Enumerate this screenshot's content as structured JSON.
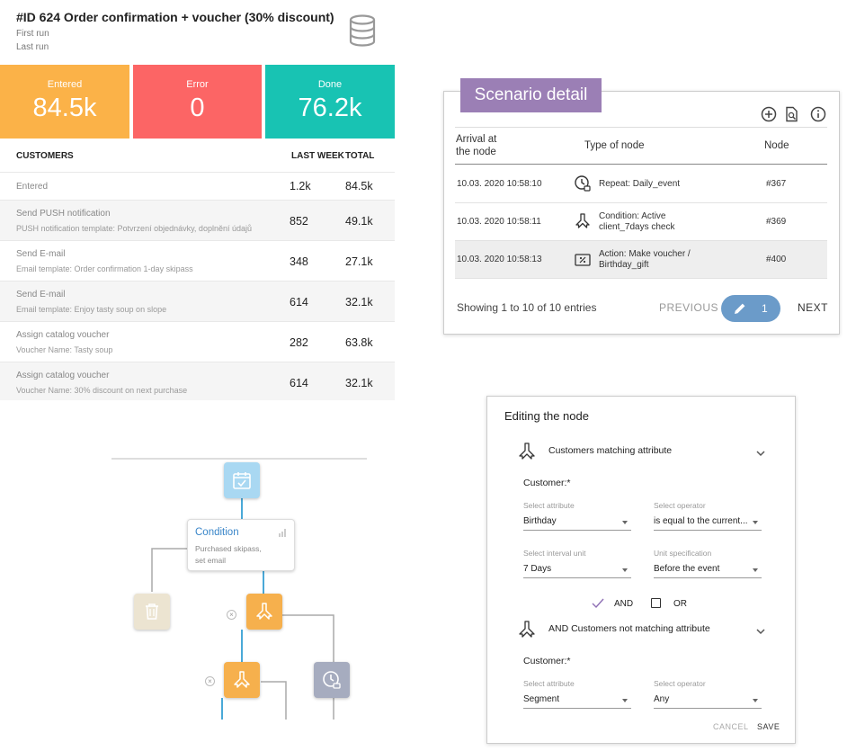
{
  "campaign": {
    "title": "#ID 624 Order confirmation + voucher (30% discount)",
    "first_run": "First run",
    "last_run": "Last run"
  },
  "stats": [
    {
      "label": "Entered",
      "value": "84.5k",
      "color": "#fbb248"
    },
    {
      "label": "Error",
      "value": "0",
      "color": "#fc6565"
    },
    {
      "label": "Done",
      "value": "76.2k",
      "color": "#18c3b3"
    }
  ],
  "customers_table": {
    "headers": {
      "name": "CUSTOMERS",
      "last_week": "LAST WEEK",
      "total": "TOTAL"
    },
    "rows": [
      {
        "title": "Entered",
        "detail": "",
        "last_week": "1.2k",
        "total": "84.5k"
      },
      {
        "title": "Send PUSH notification",
        "detail": "PUSH notification template: Potvrzení objednávky, doplnění údajů",
        "last_week": "852",
        "total": "49.1k"
      },
      {
        "title": "Send E-mail",
        "detail": "Email template: Order confirmation 1-day skipass",
        "last_week": "348",
        "total": "27.1k"
      },
      {
        "title": "Send E-mail",
        "detail": "Email template: Enjoy tasty soup on slope",
        "last_week": "614",
        "total": "32.1k"
      },
      {
        "title": "Assign catalog voucher",
        "detail": "Voucher Name: Tasty soup",
        "last_week": "282",
        "total": "63.8k"
      },
      {
        "title": "Assign catalog voucher",
        "detail": "Voucher Name: 30% discount on next purchase",
        "last_week": "614",
        "total": "32.1k"
      }
    ]
  },
  "flow": {
    "condition_title": "Condition",
    "condition_desc_1": "Purchased skipass,",
    "condition_desc_2": "set email",
    "icons": {
      "start": "calendar-check-icon",
      "trash": "trash-icon",
      "split": "split-arrows-icon",
      "timer": "clock-icon"
    },
    "colors": {
      "start": "#a9d8f2",
      "trash": "#ece4d1",
      "split": "#f6b04d",
      "timer": "#a6acbf",
      "line": "#4aa9d8"
    }
  },
  "scenario": {
    "title": "Scenario detail",
    "icons": [
      "add-circle-icon",
      "search-document-icon",
      "info-icon"
    ],
    "headers": {
      "arrival_1": "Arrival at",
      "arrival_2": "the node",
      "type": "Type of node",
      "node": "Node"
    },
    "rows": [
      {
        "date": "10.03. 2020 10:58:10",
        "icon": "clock-icon",
        "type_1": "Repeat: Daily_event",
        "type_2": "",
        "node": "#367"
      },
      {
        "date": "10.03. 2020 10:58:11",
        "icon": "split-arrows-icon",
        "type_1": "Condition: Active",
        "type_2": "client_7days check",
        "node": "#369"
      },
      {
        "date": "10.03. 2020 10:58:13",
        "icon": "voucher-icon",
        "type_1": "Action: Make voucher /",
        "type_2": "Birthday_gift",
        "node": "#400"
      }
    ],
    "showing": "Showing 1 to 10 of 10 entries",
    "previous": "PREVIOUS",
    "page": "1",
    "next": "NEXT"
  },
  "editor": {
    "title": "Editing the node",
    "section1": {
      "title": "Customers matching attribute",
      "customer_label": "Customer:*",
      "attr_label": "Select attribute",
      "attr_value": "Birthday",
      "op_label": "Select operator",
      "op_value": "is equal to the current...",
      "unit_label": "Select interval unit",
      "unit_value": "7 Days",
      "spec_label": "Unit specification",
      "spec_value": "Before the event"
    },
    "and_label": "AND",
    "or_label": "OR",
    "section2": {
      "title": "AND Customers not matching attribute",
      "customer_label": "Customer:*",
      "attr_label": "Select attribute",
      "attr_value": "Segment",
      "op_label": "Select operator",
      "op_value": "Any"
    },
    "cancel": "CANCEL",
    "save": "SAVE"
  }
}
